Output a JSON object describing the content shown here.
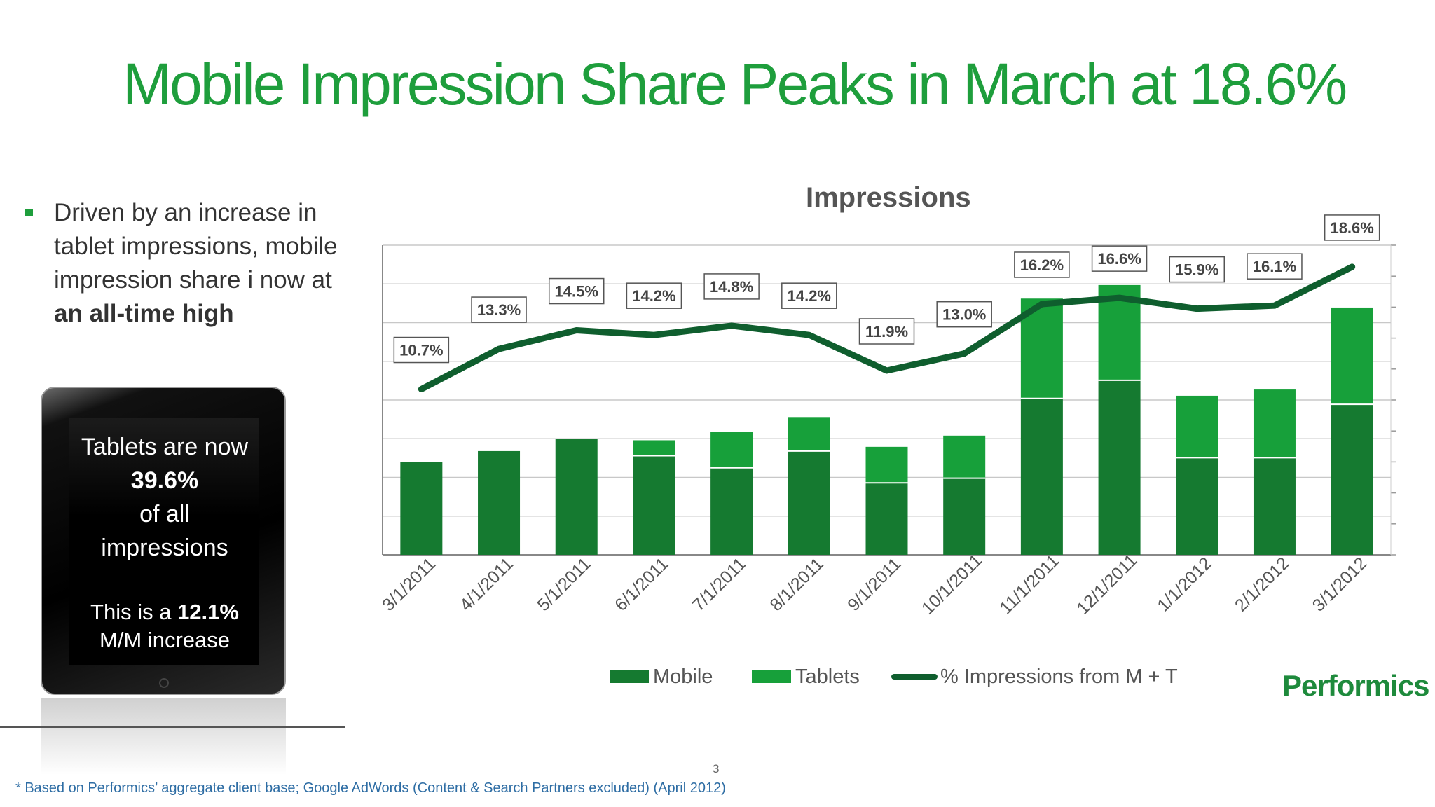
{
  "slide": {
    "title": "Mobile Impression Share Peaks in March at 18.6%",
    "bullet": {
      "text_plain": "Driven by an increase in tablet impressions, mobile impression share i now at ",
      "text_bold": "an all-time high"
    },
    "tablet_callout": {
      "line1": "Tablets are now",
      "line2": "39.6%",
      "line3": "of all",
      "line4": "impressions",
      "line5_prefix": "This is a ",
      "line5_bold": "12.1%",
      "line6": "M/M increase"
    },
    "page_number": "3",
    "footnote": "* Based on Performics’ aggregate client base; Google AdWords (Content & Search Partners excluded) (April 2012)",
    "brand": "Performics"
  },
  "colors": {
    "title_green": "#1e9e3c",
    "mobile": "#157a30",
    "tablets": "#17a03a",
    "line": "#0f5e2e",
    "footnote_blue": "#2e6da4"
  },
  "chart_data": {
    "type": "bar",
    "stacked": true,
    "title": "Impressions",
    "categories": [
      "3/1/2011",
      "4/1/2011",
      "5/1/2011",
      "6/1/2011",
      "7/1/2011",
      "8/1/2011",
      "9/1/2011",
      "10/1/2011",
      "11/1/2011",
      "12/1/2011",
      "1/1/2012",
      "2/1/2012",
      "3/1/2012"
    ],
    "series": [
      {
        "name": "Mobile",
        "kind": "bar",
        "values": [
          24,
          26.8,
          30,
          25.6,
          22.5,
          26.8,
          18.6,
          19.8,
          40.4,
          45.1,
          25.1,
          25.1,
          38.9
        ]
      },
      {
        "name": "Tablets",
        "kind": "bar",
        "values": [
          0,
          0,
          0,
          4,
          9.3,
          8.8,
          9.3,
          11,
          25.8,
          24.6,
          16,
          17.6,
          25
        ]
      },
      {
        "name": "% Impressions from M + T",
        "kind": "line",
        "axis": "secondary",
        "values": [
          10.7,
          13.3,
          14.5,
          14.2,
          14.8,
          14.2,
          11.9,
          13.0,
          16.2,
          16.6,
          15.9,
          16.1,
          18.6
        ],
        "labels": [
          "10.7%",
          "13.3%",
          "14.5%",
          "14.2%",
          "14.8%",
          "14.2%",
          "11.9%",
          "13.0%",
          "16.2%",
          "16.6%",
          "15.9%",
          "16.1%",
          "18.6%"
        ]
      }
    ],
    "ylim": [
      0,
      80
    ],
    "y2lim": [
      0,
      20
    ],
    "grid": true,
    "legend_position": "bottom"
  }
}
